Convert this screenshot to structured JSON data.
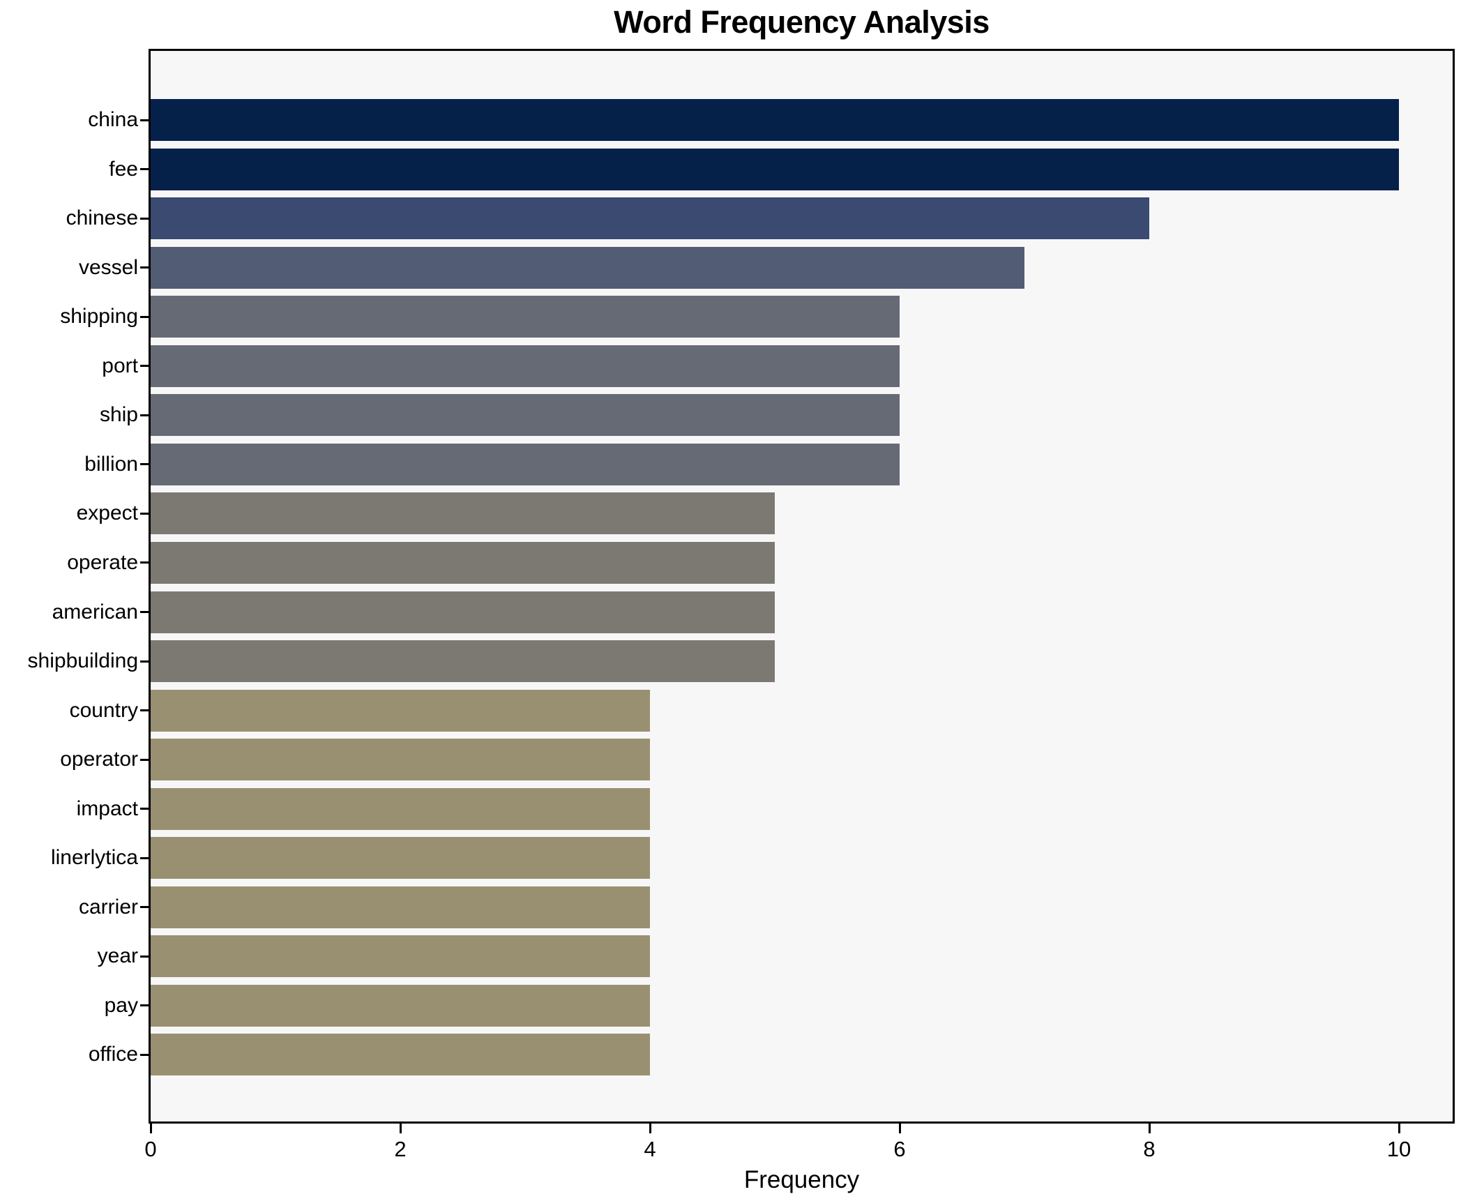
{
  "chart_data": {
    "type": "bar",
    "orientation": "horizontal",
    "title": "Word Frequency Analysis",
    "xlabel": "Frequency",
    "ylabel": "",
    "categories": [
      "china",
      "fee",
      "chinese",
      "vessel",
      "shipping",
      "port",
      "ship",
      "billion",
      "expect",
      "operate",
      "american",
      "shipbuilding",
      "country",
      "operator",
      "impact",
      "linerlytica",
      "carrier",
      "year",
      "pay",
      "office"
    ],
    "values": [
      10,
      10,
      8,
      7,
      6,
      6,
      6,
      6,
      5,
      5,
      5,
      5,
      4,
      4,
      4,
      4,
      4,
      4,
      4,
      4
    ],
    "bar_colors": [
      "#062149",
      "#062149",
      "#3a4a70",
      "#525c74",
      "#666a75",
      "#666a75",
      "#666a75",
      "#666a75",
      "#7b7972",
      "#7b7972",
      "#7b7972",
      "#7b7972",
      "#989070",
      "#989070",
      "#989070",
      "#989070",
      "#989070",
      "#989070",
      "#989070",
      "#989070"
    ],
    "xticks": [
      0,
      2,
      4,
      6,
      8,
      10
    ],
    "xlim": [
      0,
      10.43
    ],
    "grid": false,
    "legend": null,
    "plot_background": "#f7f7f8",
    "figure_background": "#ffffff",
    "spine_color": "#000000",
    "text_color": "#000000"
  }
}
